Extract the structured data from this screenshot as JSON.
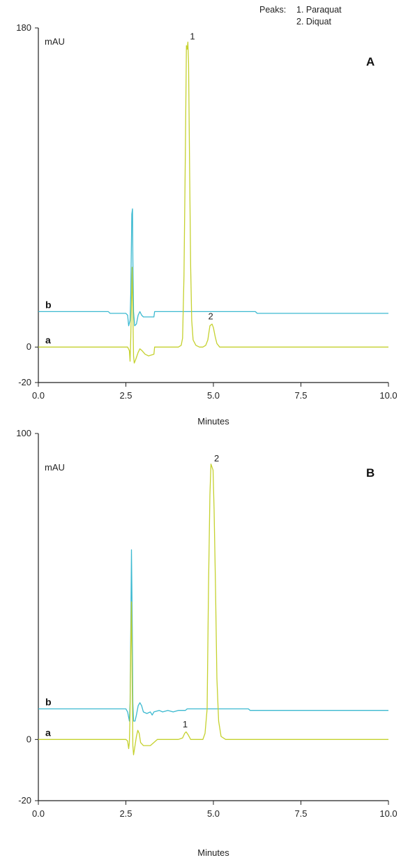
{
  "legend": {
    "heading": "Peaks:",
    "items": [
      "1. Paraquat",
      "2. Diquat"
    ]
  },
  "colors": {
    "trace_a": "#c5d12e",
    "trace_b": "#3bb9d0",
    "axis": "#222222"
  },
  "chart_data": [
    {
      "type": "line",
      "panel_label": "A",
      "ylabel": "mAU",
      "xlabel": "Minutes",
      "xlim": [
        0,
        10
      ],
      "ylim": [
        -20,
        180
      ],
      "x_ticks": [
        0,
        2.5,
        5,
        7.5,
        10
      ],
      "x_tick_labels": [
        "0.0",
        "2.5",
        "5.0",
        "7.5",
        "10.0"
      ],
      "y_ticks": [
        180,
        0,
        -20
      ],
      "y_tick_labels": [
        "180",
        "0",
        "-20"
      ],
      "series": [
        {
          "name": "a",
          "color": "#c5d12e",
          "points": [
            [
              0,
              0
            ],
            [
              2.55,
              0
            ],
            [
              2.6,
              -2
            ],
            [
              2.62,
              -8
            ],
            [
              2.64,
              5
            ],
            [
              2.66,
              25
            ],
            [
              2.68,
              45
            ],
            [
              2.7,
              20
            ],
            [
              2.72,
              -5
            ],
            [
              2.74,
              -9
            ],
            [
              2.78,
              -7
            ],
            [
              2.85,
              -3
            ],
            [
              2.9,
              -1
            ],
            [
              2.96,
              -2
            ],
            [
              3.05,
              -4
            ],
            [
              3.15,
              -5
            ],
            [
              3.3,
              -4
            ],
            [
              3.32,
              0
            ],
            [
              3.4,
              0
            ],
            [
              3.8,
              0
            ],
            [
              4.0,
              0
            ],
            [
              4.08,
              1
            ],
            [
              4.12,
              5
            ],
            [
              4.16,
              40
            ],
            [
              4.2,
              110
            ],
            [
              4.23,
              170
            ],
            [
              4.25,
              168
            ],
            [
              4.27,
              172
            ],
            [
              4.29,
              160
            ],
            [
              4.32,
              100
            ],
            [
              4.35,
              45
            ],
            [
              4.38,
              15
            ],
            [
              4.42,
              4
            ],
            [
              4.5,
              1
            ],
            [
              4.6,
              0
            ],
            [
              4.7,
              0
            ],
            [
              4.78,
              1
            ],
            [
              4.84,
              4
            ],
            [
              4.9,
              12
            ],
            [
              4.96,
              13
            ],
            [
              5.0,
              11
            ],
            [
              5.05,
              6
            ],
            [
              5.1,
              2
            ],
            [
              5.18,
              0
            ],
            [
              6,
              0
            ],
            [
              10,
              0
            ]
          ]
        },
        {
          "name": "b",
          "color": "#3bb9d0",
          "points": [
            [
              0,
              20
            ],
            [
              2.0,
              20
            ],
            [
              2.05,
              19
            ],
            [
              2.5,
              19
            ],
            [
              2.55,
              18
            ],
            [
              2.58,
              12
            ],
            [
              2.62,
              15
            ],
            [
              2.64,
              30
            ],
            [
              2.66,
              60
            ],
            [
              2.67,
              75
            ],
            [
              2.69,
              78
            ],
            [
              2.7,
              50
            ],
            [
              2.72,
              20
            ],
            [
              2.75,
              12
            ],
            [
              2.8,
              13
            ],
            [
              2.85,
              18
            ],
            [
              2.9,
              20
            ],
            [
              2.95,
              18
            ],
            [
              3.0,
              17
            ],
            [
              3.3,
              17
            ],
            [
              3.32,
              20
            ],
            [
              6.2,
              20
            ],
            [
              6.25,
              19
            ],
            [
              10,
              19
            ]
          ]
        }
      ],
      "peak_labels": [
        {
          "text": "1",
          "x": 4.33,
          "y": 172
        },
        {
          "text": "2",
          "x": 4.85,
          "y": 14
        }
      ],
      "trace_labels": [
        {
          "text": "b",
          "y": 20
        },
        {
          "text": "a",
          "y": 0
        }
      ]
    },
    {
      "type": "line",
      "panel_label": "B",
      "ylabel": "mAU",
      "xlabel": "Minutes",
      "xlim": [
        0,
        10
      ],
      "ylim": [
        -20,
        100
      ],
      "x_ticks": [
        0,
        2.5,
        5,
        7.5,
        10
      ],
      "x_tick_labels": [
        "0.0",
        "2.5",
        "5.0",
        "7.5",
        "10.0"
      ],
      "y_ticks": [
        100,
        0,
        -20
      ],
      "y_tick_labels": [
        "100",
        "0",
        "-20"
      ],
      "series": [
        {
          "name": "a",
          "color": "#c5d12e",
          "points": [
            [
              0,
              0
            ],
            [
              2.5,
              0
            ],
            [
              2.55,
              -0.5
            ],
            [
              2.58,
              -3
            ],
            [
              2.6,
              -1
            ],
            [
              2.62,
              8
            ],
            [
              2.64,
              30
            ],
            [
              2.66,
              45
            ],
            [
              2.68,
              20
            ],
            [
              2.7,
              -2
            ],
            [
              2.72,
              -5
            ],
            [
              2.76,
              -2
            ],
            [
              2.8,
              1
            ],
            [
              2.84,
              3
            ],
            [
              2.88,
              2
            ],
            [
              2.92,
              -1
            ],
            [
              3.0,
              -2
            ],
            [
              3.2,
              -2
            ],
            [
              3.4,
              0
            ],
            [
              4.0,
              0
            ],
            [
              4.12,
              0.5
            ],
            [
              4.18,
              2
            ],
            [
              4.22,
              2.5
            ],
            [
              4.28,
              1.5
            ],
            [
              4.35,
              0
            ],
            [
              4.7,
              0
            ],
            [
              4.76,
              2
            ],
            [
              4.82,
              10
            ],
            [
              4.86,
              50
            ],
            [
              4.9,
              80
            ],
            [
              4.93,
              90
            ],
            [
              4.96,
              89
            ],
            [
              4.99,
              88
            ],
            [
              5.02,
              75
            ],
            [
              5.06,
              50
            ],
            [
              5.1,
              20
            ],
            [
              5.15,
              6
            ],
            [
              5.22,
              1
            ],
            [
              5.35,
              0
            ],
            [
              10,
              0
            ]
          ]
        },
        {
          "name": "b",
          "color": "#3bb9d0",
          "points": [
            [
              0,
              10
            ],
            [
              2.5,
              10
            ],
            [
              2.55,
              9
            ],
            [
              2.6,
              6
            ],
            [
              2.62,
              12
            ],
            [
              2.64,
              35
            ],
            [
              2.66,
              62
            ],
            [
              2.68,
              40
            ],
            [
              2.7,
              12
            ],
            [
              2.72,
              6
            ],
            [
              2.76,
              6
            ],
            [
              2.8,
              8
            ],
            [
              2.85,
              11
            ],
            [
              2.9,
              12
            ],
            [
              2.95,
              11
            ],
            [
              3.0,
              9
            ],
            [
              3.1,
              8.5
            ],
            [
              3.2,
              9
            ],
            [
              3.25,
              8
            ],
            [
              3.3,
              9
            ],
            [
              3.45,
              9.5
            ],
            [
              3.55,
              9
            ],
            [
              3.7,
              9.5
            ],
            [
              3.85,
              9
            ],
            [
              4.0,
              9.5
            ],
            [
              4.2,
              9.5
            ],
            [
              4.25,
              10
            ],
            [
              6.0,
              10
            ],
            [
              6.05,
              9.5
            ],
            [
              10,
              9.5
            ]
          ]
        }
      ],
      "peak_labels": [
        {
          "text": "2",
          "x": 5.02,
          "y": 90
        },
        {
          "text": "1",
          "x": 4.12,
          "y": 3
        }
      ],
      "trace_labels": [
        {
          "text": "b",
          "y": 10
        },
        {
          "text": "a",
          "y": 0
        }
      ]
    }
  ]
}
